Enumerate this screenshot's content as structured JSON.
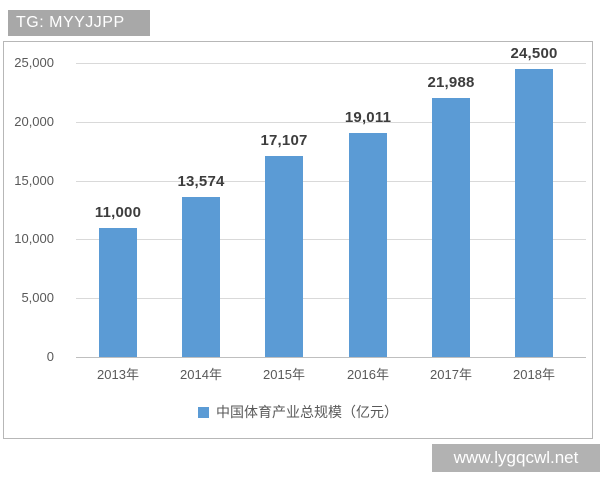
{
  "watermarks": {
    "top": "TG: MYYJJPP",
    "bottom": "www.lygqcwl.net"
  },
  "chart_data": {
    "type": "bar",
    "title": "",
    "categories": [
      "2013年",
      "2014年",
      "2015年",
      "2016年",
      "2017年",
      "2018年"
    ],
    "values": [
      11000,
      13574,
      17107,
      19011,
      21988,
      24500
    ],
    "value_labels": [
      "11,000",
      "13,574",
      "17,107",
      "19,011",
      "21,988",
      "24,500"
    ],
    "legend": "中国体育产业总规模（亿元）",
    "legend_position": "bottom",
    "xlabel": "",
    "ylabel": "",
    "ylim": [
      0,
      25000
    ],
    "yticks": [
      0,
      5000,
      10000,
      15000,
      20000,
      25000
    ],
    "ytick_labels": [
      "0",
      "5,000",
      "10,000",
      "15,000",
      "20,000",
      "25,000"
    ],
    "grid": true,
    "bar_color": "#5b9bd5"
  }
}
